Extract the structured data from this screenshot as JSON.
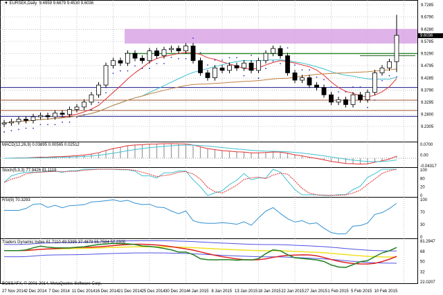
{
  "header": {
    "symbol": "EURSEK,Daily",
    "open": "9.4959",
    "high": "9.6879",
    "low": "9.4530",
    "close": "9.6036"
  },
  "copyright": "BOSSAFX, © 2001-2014, MetaQuotes Software Corp.",
  "chart_data": {
    "type": "candlestick",
    "title": "EURSEK,Daily",
    "closes": [
      9.245,
      9.25,
      9.26,
      9.255,
      9.27,
      9.275,
      9.27,
      9.285,
      9.28,
      9.3,
      9.31,
      9.33,
      9.36,
      9.4,
      9.48,
      9.5,
      9.49,
      9.53,
      9.51,
      9.5,
      9.54,
      9.52,
      9.545,
      9.55,
      9.54,
      9.56,
      9.5,
      9.45,
      9.43,
      9.47,
      9.46,
      9.48,
      9.47,
      9.49,
      9.46,
      9.5,
      9.53,
      9.55,
      9.52,
      9.45,
      9.42,
      9.43,
      9.4,
      9.39,
      9.36,
      9.33,
      9.34,
      9.32,
      9.36,
      9.34,
      9.37,
      9.45,
      9.47,
      9.4959,
      9.6036
    ],
    "last_bar": {
      "open": 9.4959,
      "high": 9.6879,
      "low": 9.453,
      "close": 9.6036
    },
    "current_price_label": "9.6036",
    "ylim": [
      9.2305,
      9.7285
    ],
    "y_ticks": [
      "9.7285",
      "9.6790",
      "9.6280",
      "9.5785",
      "9.5290",
      "9.4795",
      "9.4285",
      "9.3790",
      "9.3295",
      "9.2800",
      "9.2305"
    ],
    "x_ticks": [
      "27 Nov 2014",
      "2 Dec 2014",
      "7 Dec 2014",
      "11 Dec 2014",
      "16 Dec 2014",
      "21 Dec 2014",
      "25 Dec 2014",
      "30 Dec 2014",
      "4 Jan 2015",
      "8 Jan 2015",
      "13 Jan 2015",
      "18 Jan 2015",
      "22 Jan 2015",
      "27 Jan 2015",
      "1 Feb 2015",
      "5 Feb 2015",
      "10 Feb 2015"
    ],
    "zones": {
      "resistance_zone": [
        9.57,
        9.63
      ],
      "green_level": 9.529,
      "short_green_level": 9.52,
      "blue_level": 9.39,
      "brown_levels": [
        9.338,
        9.296
      ],
      "navy_level": 9.272
    },
    "colors": {
      "bull": "#ffffff",
      "bear": "#000000",
      "zone": "#d9a6e6",
      "green": "#2e8b2e",
      "navy": "#1a1a8c",
      "brown": "#a0522d"
    },
    "panels": [
      {
        "label": "MACD(12,26,9) 0.03895 0.00565 0.02512",
        "ticks": [
          "0.0700",
          "0.00",
          "-0.04317"
        ]
      },
      {
        "label": "Stoch(5,3,3) 77.9426 81.1119",
        "ticks": [
          "100",
          "80",
          "20",
          "0"
        ]
      },
      {
        "label": "RSI(9) 70.3293",
        "ticks": [
          "100",
          "70",
          "30",
          "0"
        ]
      },
      {
        "label": "Traders Dynamic Index 61.7110 49.5395 37.4879 55.7584 57.2300",
        "ticks": [
          "81.2947",
          "68",
          "50",
          "32",
          "22.0207"
        ]
      }
    ]
  }
}
